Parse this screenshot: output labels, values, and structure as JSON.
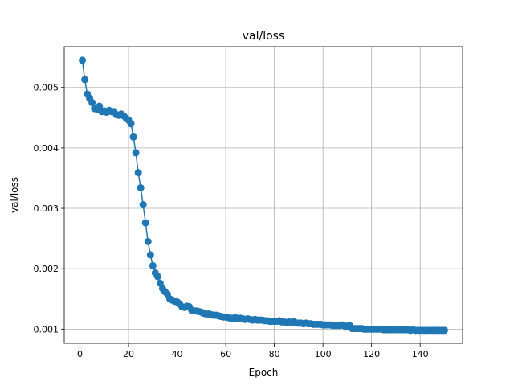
{
  "chart_data": {
    "type": "line",
    "title": "val/loss",
    "xlabel": "Epoch",
    "ylabel": "val/loss",
    "xlim": [
      -6.45,
      157.45
    ],
    "ylim": [
      0.000765,
      0.005675
    ],
    "xticks": [
      0,
      20,
      40,
      60,
      80,
      100,
      120,
      140
    ],
    "xtick_labels": [
      "0",
      "20",
      "40",
      "60",
      "80",
      "100",
      "120",
      "140"
    ],
    "yticks": [
      0.001,
      0.002,
      0.003,
      0.004,
      0.005
    ],
    "ytick_labels": [
      "0.001",
      "0.002",
      "0.003",
      "0.004",
      "0.005"
    ],
    "grid": true,
    "legend": "none",
    "marker": "circle",
    "series": [
      {
        "color": "#1f77b4",
        "x": [
          1,
          2,
          3,
          4,
          5,
          6,
          7,
          8,
          9,
          10,
          11,
          12,
          13,
          14,
          15,
          16,
          17,
          18,
          19,
          20,
          21,
          22,
          23,
          24,
          25,
          26,
          27,
          28,
          29,
          30,
          31,
          32,
          33,
          34,
          35,
          36,
          37,
          38,
          39,
          40,
          41,
          42,
          43,
          44,
          45,
          46,
          47,
          48,
          49,
          50,
          51,
          52,
          53,
          54,
          55,
          56,
          57,
          58,
          59,
          60,
          61,
          62,
          63,
          64,
          65,
          66,
          67,
          68,
          69,
          70,
          71,
          72,
          73,
          74,
          75,
          76,
          77,
          78,
          79,
          80,
          81,
          82,
          83,
          84,
          85,
          86,
          87,
          88,
          89,
          90,
          91,
          92,
          93,
          94,
          95,
          96,
          97,
          98,
          99,
          100,
          101,
          102,
          103,
          104,
          105,
          106,
          107,
          108,
          109,
          110,
          111,
          112,
          113,
          114,
          115,
          116,
          117,
          118,
          119,
          120,
          121,
          122,
          123,
          124,
          125,
          126,
          127,
          128,
          129,
          130,
          131,
          132,
          133,
          134,
          135,
          136,
          137,
          138,
          139,
          140,
          141,
          142,
          143,
          144,
          145,
          146,
          147,
          148,
          149,
          150
        ],
        "y": [
          0.00545,
          0.00513,
          0.00489,
          0.00482,
          0.00475,
          0.00465,
          0.00464,
          0.00469,
          0.0046,
          0.00461,
          0.00459,
          0.00462,
          0.0046,
          0.0046,
          0.00455,
          0.00454,
          0.00456,
          0.00453,
          0.00449,
          0.00446,
          0.0044,
          0.00418,
          0.00392,
          0.00359,
          0.00334,
          0.00306,
          0.00276,
          0.00245,
          0.00223,
          0.00205,
          0.00193,
          0.00187,
          0.00176,
          0.00167,
          0.00162,
          0.00158,
          0.0015,
          0.00148,
          0.00146,
          0.00145,
          0.00142,
          0.00137,
          0.00136,
          0.00138,
          0.00137,
          0.00131,
          0.0013,
          0.0013,
          0.00129,
          0.00128,
          0.00126,
          0.00125,
          0.00125,
          0.00124,
          0.00123,
          0.00123,
          0.00122,
          0.00121,
          0.0012,
          0.0012,
          0.00119,
          0.00118,
          0.00118,
          0.00119,
          0.00117,
          0.00118,
          0.00117,
          0.00116,
          0.00117,
          0.00116,
          0.00115,
          0.00116,
          0.00115,
          0.00115,
          0.00115,
          0.00114,
          0.00114,
          0.00113,
          0.00113,
          0.00113,
          0.00113,
          0.00114,
          0.00112,
          0.00112,
          0.00111,
          0.00112,
          0.00111,
          0.00113,
          0.0011,
          0.0011,
          0.0011,
          0.00109,
          0.0011,
          0.00109,
          0.00109,
          0.00108,
          0.00108,
          0.00108,
          0.00108,
          0.00107,
          0.00107,
          0.00107,
          0.00107,
          0.00106,
          0.00106,
          0.00106,
          0.00106,
          0.00107,
          0.00105,
          0.00105,
          0.00106,
          0.00101,
          0.00101,
          0.00101,
          0.00101,
          0.00101,
          0.001,
          0.001,
          0.001,
          0.001,
          0.001,
          0.001,
          0.001,
          0.001,
          0.00099,
          0.00099,
          0.00099,
          0.00099,
          0.00099,
          0.00099,
          0.00099,
          0.00099,
          0.00099,
          0.00099,
          0.00099,
          0.00098,
          0.00099,
          0.00098,
          0.00098,
          0.00098,
          0.00098,
          0.00098,
          0.00098,
          0.00098,
          0.00098,
          0.00098,
          0.00098,
          0.00098,
          0.00098,
          0.00098
        ]
      }
    ]
  }
}
